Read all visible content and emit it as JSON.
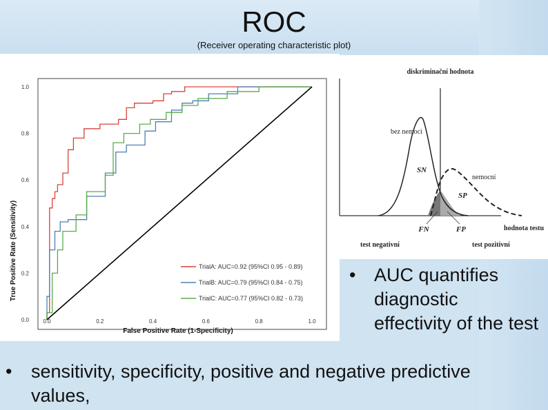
{
  "slide": {
    "title": "ROC",
    "subtitle": "(Receiver operating characteristic plot)"
  },
  "chart_data": [
    {
      "type": "line",
      "xlabel": "False Positive Rate (1-Specificity)",
      "ylabel": "True Positive Rate (Sensitivity)",
      "xlim": [
        0,
        1
      ],
      "ylim": [
        0,
        1
      ],
      "xticks": [
        "0.0",
        "0.2",
        "0.4",
        "0.6",
        "0.8",
        "1.0"
      ],
      "yticks": [
        "0.0",
        "0.2",
        "0.4",
        "0.6",
        "0.8",
        "1.0"
      ],
      "legend_position": "bottom-right",
      "colors": {
        "trialA": "#d9403a",
        "trialB": "#4a7fb5",
        "trialC": "#5aaa4a",
        "diagonal": "#000000"
      },
      "series": [
        {
          "name": "TrialA: AUC=0.92 (95%CI 0.95 - 0.89)",
          "x": [
            0,
            0,
            0.01,
            0.01,
            0.02,
            0.02,
            0.03,
            0.03,
            0.04,
            0.04,
            0.06,
            0.06,
            0.08,
            0.08,
            0.1,
            0.1,
            0.14,
            0.14,
            0.2,
            0.2,
            0.27,
            0.27,
            0.3,
            0.3,
            0.33,
            0.33,
            0.4,
            0.4,
            0.44,
            0.44,
            0.47,
            0.47,
            0.52,
            0.52,
            0.6,
            0.6,
            0.8,
            0.8,
            1.0
          ],
          "y": [
            0,
            0.03,
            0.03,
            0.48,
            0.48,
            0.52,
            0.52,
            0.55,
            0.55,
            0.58,
            0.58,
            0.63,
            0.63,
            0.73,
            0.73,
            0.78,
            0.78,
            0.82,
            0.82,
            0.84,
            0.84,
            0.86,
            0.86,
            0.91,
            0.91,
            0.93,
            0.93,
            0.94,
            0.94,
            0.97,
            0.97,
            0.98,
            0.98,
            1.0,
            1.0,
            1.0,
            1.0,
            1.0,
            1.0
          ]
        },
        {
          "name": "TrialB: AUC=0.79 (95%CI 0.84 - 0.75)",
          "x": [
            0,
            0,
            0.01,
            0.01,
            0.03,
            0.03,
            0.05,
            0.05,
            0.08,
            0.08,
            0.15,
            0.15,
            0.22,
            0.22,
            0.26,
            0.26,
            0.3,
            0.3,
            0.37,
            0.37,
            0.41,
            0.41,
            0.47,
            0.47,
            0.51,
            0.51,
            0.55,
            0.55,
            0.61,
            0.61,
            0.72,
            0.72,
            0.8,
            0.8,
            1.0
          ],
          "y": [
            0,
            0.1,
            0.1,
            0.3,
            0.3,
            0.38,
            0.38,
            0.42,
            0.42,
            0.43,
            0.43,
            0.53,
            0.53,
            0.63,
            0.63,
            0.72,
            0.72,
            0.75,
            0.75,
            0.81,
            0.81,
            0.85,
            0.85,
            0.9,
            0.9,
            0.93,
            0.93,
            0.94,
            0.94,
            0.97,
            0.97,
            1.0,
            1.0,
            1.0,
            1.0
          ]
        },
        {
          "name": "TrialC: AUC=0.77 (95%CI 0.82 - 0.73)",
          "x": [
            0,
            0,
            0.02,
            0.02,
            0.04,
            0.04,
            0.06,
            0.06,
            0.11,
            0.11,
            0.15,
            0.15,
            0.22,
            0.22,
            0.25,
            0.25,
            0.29,
            0.29,
            0.35,
            0.35,
            0.39,
            0.39,
            0.45,
            0.45,
            0.51,
            0.51,
            0.57,
            0.57,
            0.68,
            0.68,
            0.8,
            0.8,
            1.0
          ],
          "y": [
            0,
            0.03,
            0.03,
            0.2,
            0.2,
            0.3,
            0.3,
            0.38,
            0.38,
            0.45,
            0.45,
            0.55,
            0.55,
            0.62,
            0.62,
            0.76,
            0.76,
            0.8,
            0.8,
            0.84,
            0.84,
            0.86,
            0.86,
            0.89,
            0.89,
            0.92,
            0.92,
            0.95,
            0.95,
            0.98,
            0.98,
            1.0,
            1.0
          ]
        },
        {
          "name": "",
          "x": [
            0,
            1
          ],
          "y": [
            0,
            1
          ]
        }
      ]
    },
    {
      "type": "line",
      "xlabel": "hodnota testu",
      "annotations": {
        "threshold": "diskriminační hodnota",
        "healthy": "bez nemoci",
        "diseased": "nemocní",
        "sn": "SN",
        "sp": "SP",
        "fn": "FN",
        "fp": "FP",
        "neg": "test negativní",
        "pos": "test pozitivní"
      }
    }
  ],
  "bullets": {
    "right": "AUC quantifies diagnostic effectivity of the test",
    "bottom": "sensitivity, specificity, positive and negative predictive values,",
    "marker": "•"
  }
}
